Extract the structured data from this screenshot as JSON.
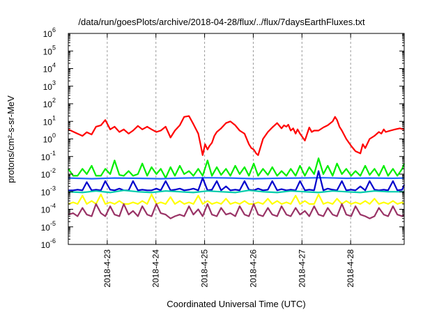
{
  "chart_data": {
    "type": "line",
    "title": "/data/run/goesPlots/archive/2018-04-28/flux/../flux/7daysEarthFluxes.txt",
    "xlabel": "Coordinated Universal Time (UTC)",
    "ylabel": "protons/cm²-s-sr-MeV",
    "yscale": "log",
    "ylim": [
      1e-06,
      1000000.0
    ],
    "xlim": [
      0,
      6.9
    ],
    "grid": "vertical dashed lines at date ticks",
    "legend": "none",
    "y_ticks": [
      {
        "base": "10",
        "exp": "-6",
        "value": 1e-06
      },
      {
        "base": "10",
        "exp": "-5",
        "value": 1e-05
      },
      {
        "base": "10",
        "exp": "-4",
        "value": 0.0001
      },
      {
        "base": "10",
        "exp": "-3",
        "value": 0.001
      },
      {
        "base": "10",
        "exp": "-2",
        "value": 0.01
      },
      {
        "base": "10",
        "exp": "-1",
        "value": 0.1
      },
      {
        "base": "10",
        "exp": "0",
        "value": 1
      },
      {
        "base": "10",
        "exp": "1",
        "value": 10
      },
      {
        "base": "10",
        "exp": "2",
        "value": 100
      },
      {
        "base": "10",
        "exp": "3",
        "value": 1000
      },
      {
        "base": "10",
        "exp": "4",
        "value": 10000
      },
      {
        "base": "10",
        "exp": "5",
        "value": 100000
      },
      {
        "base": "10",
        "exp": "6",
        "value": 1000000
      }
    ],
    "x_ticks": [
      {
        "label": "2018-4-23",
        "value": 0.8
      },
      {
        "label": "2018-4-24",
        "value": 1.8
      },
      {
        "label": "2018-4-25",
        "value": 2.8
      },
      {
        "label": "2018-4-26",
        "value": 3.8
      },
      {
        "label": "2018-4-27",
        "value": 4.8
      },
      {
        "label": "2018-4-28",
        "value": 5.8
      }
    ],
    "series": [
      {
        "color": "#ff0000",
        "x": [
          0,
          0.14,
          0.29,
          0.38,
          0.48,
          0.57,
          0.67,
          0.76,
          0.86,
          0.95,
          1.05,
          1.14,
          1.24,
          1.33,
          1.43,
          1.52,
          1.62,
          1.71,
          1.81,
          1.9,
          2,
          2.1,
          2.19,
          2.29,
          2.38,
          2.48,
          2.57,
          2.67,
          2.71,
          2.76,
          2.81,
          2.86,
          2.9,
          2.95,
          3,
          3.05,
          3.14,
          3.24,
          3.33,
          3.43,
          3.52,
          3.62,
          3.71,
          3.76,
          3.81,
          3.86,
          3.9,
          4,
          4.1,
          4.19,
          4.29,
          4.38,
          4.43,
          4.48,
          4.52,
          4.57,
          4.62,
          4.67,
          4.71,
          4.76,
          4.86,
          4.95,
          5,
          5.05,
          5.14,
          5.24,
          5.33,
          5.43,
          5.48,
          5.52,
          5.57,
          5.62,
          5.71,
          5.81,
          5.9,
          6,
          6.05,
          6.1,
          6.19,
          6.29,
          6.38,
          6.43,
          6.48,
          6.52,
          6.62,
          6.71,
          6.81,
          6.9
        ],
        "values": [
          3.5,
          2.3,
          1.5,
          2.4,
          1.8,
          5.0,
          6.0,
          12.0,
          3.5,
          5.0,
          2.5,
          3.5,
          2.0,
          3.0,
          5.5,
          3.5,
          5.0,
          3.5,
          2.5,
          3.0,
          5.0,
          1.2,
          3.0,
          6.0,
          18.0,
          20.0,
          7.0,
          2.0,
          0.6,
          0.12,
          0.5,
          0.25,
          0.4,
          0.6,
          1.5,
          2.5,
          4.0,
          8.0,
          10.0,
          6.0,
          3.0,
          2.0,
          0.5,
          0.3,
          0.25,
          0.15,
          0.12,
          1.0,
          2.5,
          4.5,
          8.0,
          4.0,
          6.0,
          5.0,
          6.5,
          3.0,
          4.0,
          2.0,
          3.5,
          2.0,
          0.8,
          4.5,
          2.5,
          3.0,
          3.0,
          4.5,
          6.0,
          10.0,
          18.0,
          12.0,
          5.0,
          3.0,
          1.0,
          0.4,
          0.2,
          0.15,
          0.5,
          0.3,
          1.0,
          1.5,
          2.5,
          2.0,
          3.5,
          2.5,
          3.0,
          3.5,
          4.0,
          3.5
        ]
      },
      {
        "color": "#00ee00",
        "x": [
          0,
          0.1,
          0.19,
          0.29,
          0.38,
          0.48,
          0.57,
          0.67,
          0.76,
          0.86,
          0.95,
          1.05,
          1.14,
          1.24,
          1.33,
          1.43,
          1.52,
          1.62,
          1.71,
          1.81,
          1.9,
          2,
          2.1,
          2.19,
          2.29,
          2.38,
          2.48,
          2.57,
          2.67,
          2.76,
          2.86,
          2.95,
          3.05,
          3.14,
          3.24,
          3.33,
          3.43,
          3.52,
          3.62,
          3.71,
          3.81,
          3.9,
          4,
          4.1,
          4.19,
          4.29,
          4.38,
          4.48,
          4.57,
          4.67,
          4.76,
          4.86,
          4.95,
          5.05,
          5.14,
          5.24,
          5.33,
          5.43,
          5.52,
          5.62,
          5.71,
          5.81,
          5.9,
          6,
          6.1,
          6.19,
          6.29,
          6.38,
          6.48,
          6.57,
          6.67,
          6.76,
          6.86,
          6.9
        ],
        "values": [
          0.02,
          0.008,
          0.008,
          0.02,
          0.01,
          0.03,
          0.008,
          0.008,
          0.02,
          0.01,
          0.06,
          0.009,
          0.008,
          0.015,
          0.008,
          0.01,
          0.04,
          0.008,
          0.025,
          0.01,
          0.02,
          0.006,
          0.025,
          0.008,
          0.03,
          0.01,
          0.015,
          0.008,
          0.02,
          0.008,
          0.06,
          0.008,
          0.025,
          0.009,
          0.02,
          0.008,
          0.03,
          0.01,
          0.025,
          0.008,
          0.04,
          0.008,
          0.02,
          0.009,
          0.025,
          0.008,
          0.015,
          0.008,
          0.02,
          0.008,
          0.03,
          0.008,
          0.025,
          0.01,
          0.08,
          0.01,
          0.03,
          0.008,
          0.04,
          0.01,
          0.02,
          0.008,
          0.015,
          0.008,
          0.03,
          0.009,
          0.02,
          0.008,
          0.03,
          0.008,
          0.02,
          0.008,
          0.02,
          0.04
        ]
      },
      {
        "color": "#2266ff",
        "x": [
          0,
          0.48,
          0.95,
          1.43,
          1.9,
          2.38,
          2.86,
          3.33,
          3.81,
          4.29,
          4.76,
          5.24,
          5.71,
          6.19,
          6.67,
          6.9
        ],
        "values": [
          0.006,
          0.0055,
          0.006,
          0.0058,
          0.0055,
          0.006,
          0.0062,
          0.006,
          0.0055,
          0.0058,
          0.006,
          0.0062,
          0.0058,
          0.006,
          0.0058,
          0.006
        ]
      },
      {
        "color": "#0000cc",
        "x": [
          0,
          0.1,
          0.19,
          0.29,
          0.38,
          0.48,
          0.57,
          0.67,
          0.76,
          0.86,
          0.95,
          1.05,
          1.14,
          1.24,
          1.33,
          1.43,
          1.52,
          1.62,
          1.71,
          1.81,
          1.9,
          2,
          2.1,
          2.19,
          2.29,
          2.38,
          2.48,
          2.57,
          2.67,
          2.76,
          2.86,
          2.95,
          3.05,
          3.14,
          3.24,
          3.33,
          3.43,
          3.52,
          3.62,
          3.71,
          3.81,
          3.9,
          4,
          4.1,
          4.19,
          4.29,
          4.38,
          4.48,
          4.57,
          4.67,
          4.76,
          4.86,
          4.95,
          5.05,
          5.14,
          5.24,
          5.33,
          5.43,
          5.52,
          5.62,
          5.71,
          5.81,
          5.9,
          6,
          6.1,
          6.19,
          6.29,
          6.38,
          6.48,
          6.57,
          6.67,
          6.76,
          6.86,
          6.9
        ],
        "values": [
          0.0012,
          0.0012,
          0.0013,
          0.0012,
          0.0035,
          0.0012,
          0.0013,
          0.0012,
          0.004,
          0.0013,
          0.0012,
          0.0015,
          0.0012,
          0.0012,
          0.004,
          0.0012,
          0.0013,
          0.0012,
          0.0012,
          0.0015,
          0.0012,
          0.004,
          0.0012,
          0.0013,
          0.0015,
          0.0012,
          0.0013,
          0.0015,
          0.0012,
          0.006,
          0.0012,
          0.0013,
          0.004,
          0.0012,
          0.002,
          0.0012,
          0.0013,
          0.0012,
          0.004,
          0.0013,
          0.0012,
          0.0015,
          0.0012,
          0.0013,
          0.004,
          0.0012,
          0.0014,
          0.0012,
          0.0013,
          0.0012,
          0.004,
          0.0012,
          0.0013,
          0.0012,
          0.015,
          0.0012,
          0.0015,
          0.0013,
          0.0012,
          0.004,
          0.0012,
          0.0013,
          0.0012,
          0.002,
          0.0012,
          0.004,
          0.0013,
          0.0012,
          0.0013,
          0.0012,
          0.004,
          0.0012,
          0.0013,
          0.0025
        ]
      },
      {
        "color": "#00ccaa",
        "x": [
          0,
          0.29,
          0.57,
          0.86,
          1.14,
          1.43,
          1.71,
          2,
          2.29,
          2.57,
          2.86,
          3.14,
          3.43,
          3.71,
          4,
          4.29,
          4.57,
          4.86,
          5.14,
          5.43,
          5.71,
          6,
          6.29,
          6.57,
          6.9
        ],
        "values": [
          0.001,
          0.0009,
          0.0011,
          0.0009,
          0.0012,
          0.001,
          0.0009,
          0.0011,
          0.001,
          0.0009,
          0.0011,
          0.001,
          0.0009,
          0.0012,
          0.001,
          0.0009,
          0.0011,
          0.001,
          0.0009,
          0.0011,
          0.001,
          0.0009,
          0.0011,
          0.001,
          0.001
        ]
      },
      {
        "color": "#ffff00",
        "x": [
          0,
          0.1,
          0.19,
          0.29,
          0.38,
          0.48,
          0.57,
          0.67,
          0.76,
          0.86,
          0.95,
          1.05,
          1.14,
          1.24,
          1.33,
          1.43,
          1.52,
          1.62,
          1.71,
          1.81,
          1.9,
          2,
          2.1,
          2.19,
          2.29,
          2.38,
          2.48,
          2.57,
          2.67,
          2.76,
          2.86,
          2.95,
          3.05,
          3.14,
          3.24,
          3.33,
          3.43,
          3.52,
          3.62,
          3.71,
          3.81,
          3.9,
          4,
          4.1,
          4.19,
          4.29,
          4.38,
          4.48,
          4.57,
          4.67,
          4.76,
          4.86,
          4.95,
          5.05,
          5.14,
          5.24,
          5.33,
          5.43,
          5.52,
          5.62,
          5.71,
          5.81,
          5.9,
          6,
          6.1,
          6.19,
          6.29,
          6.38,
          6.48,
          6.57,
          6.67,
          6.76,
          6.86,
          6.9
        ],
        "values": [
          0.0002,
          0.00025,
          0.0002,
          0.0006,
          0.0002,
          0.0003,
          0.0002,
          0.0007,
          0.0002,
          0.00025,
          0.0002,
          0.0003,
          0.0002,
          0.0002,
          0.00025,
          0.0002,
          0.0003,
          0.0002,
          0.0007,
          0.0002,
          0.00025,
          0.0002,
          0.0005,
          0.0002,
          0.0003,
          0.0002,
          0.00025,
          0.0002,
          0.0006,
          0.0002,
          0.0003,
          0.0002,
          0.00025,
          0.0002,
          0.0004,
          0.0002,
          0.00025,
          0.0002,
          0.0003,
          0.0002,
          0.0002,
          0.00025,
          0.0002,
          0.0004,
          0.0002,
          0.0003,
          0.0002,
          0.00025,
          0.0002,
          0.0006,
          0.0002,
          0.0003,
          0.0002,
          0.0002,
          0.0007,
          0.0002,
          0.00025,
          0.0002,
          0.0004,
          0.0002,
          0.0003,
          0.0002,
          0.00025,
          0.0002,
          0.0003,
          0.0002,
          0.0004,
          0.0002,
          0.00025,
          0.0002,
          0.0003,
          0.0002,
          0.00025,
          0.0002
        ]
      },
      {
        "color": "#993366",
        "x": [
          0,
          0.1,
          0.19,
          0.29,
          0.38,
          0.48,
          0.57,
          0.67,
          0.76,
          0.86,
          0.95,
          1.05,
          1.14,
          1.24,
          1.33,
          1.43,
          1.52,
          1.62,
          1.71,
          1.81,
          1.9,
          2,
          2.1,
          2.19,
          2.29,
          2.38,
          2.48,
          2.57,
          2.67,
          2.76,
          2.86,
          2.95,
          3.05,
          3.14,
          3.24,
          3.33,
          3.43,
          3.52,
          3.62,
          3.71,
          3.81,
          3.9,
          4,
          4.1,
          4.19,
          4.29,
          4.38,
          4.48,
          4.57,
          4.67,
          4.76,
          4.86,
          4.95,
          5.05,
          5.14,
          5.24,
          5.33,
          5.43,
          5.52,
          5.62,
          5.71,
          5.81,
          5.9,
          6,
          6.1,
          6.19,
          6.29,
          6.38,
          6.48,
          6.57,
          6.67,
          6.76,
          6.86,
          6.9
        ],
        "values": [
          5e-05,
          6e-05,
          4e-05,
          0.00012,
          5e-05,
          4e-05,
          0.0002,
          6e-05,
          4e-05,
          0.00015,
          5e-05,
          4e-05,
          0.0002,
          5e-05,
          8e-05,
          4e-05,
          0.00015,
          5e-05,
          4e-05,
          0.0002,
          6e-05,
          5e-05,
          3e-05,
          4e-05,
          5e-05,
          4e-05,
          0.00015,
          5e-05,
          0.0001,
          4e-05,
          0.0002,
          5e-05,
          4e-05,
          0.00012,
          5e-05,
          6e-05,
          4e-05,
          0.00015,
          5e-05,
          4e-05,
          0.0002,
          5e-05,
          4e-05,
          0.00012,
          5e-05,
          4e-05,
          0.00015,
          5e-05,
          4e-05,
          0.00012,
          5e-05,
          8e-05,
          4e-05,
          0.00015,
          5e-05,
          4e-05,
          0.00012,
          5e-05,
          4e-05,
          0.0002,
          5e-05,
          4e-05,
          0.00015,
          5e-05,
          4e-05,
          3e-05,
          4e-05,
          0.00012,
          5e-05,
          4e-05,
          0.00015,
          5e-05,
          4e-05,
          5e-05
        ]
      }
    ]
  }
}
